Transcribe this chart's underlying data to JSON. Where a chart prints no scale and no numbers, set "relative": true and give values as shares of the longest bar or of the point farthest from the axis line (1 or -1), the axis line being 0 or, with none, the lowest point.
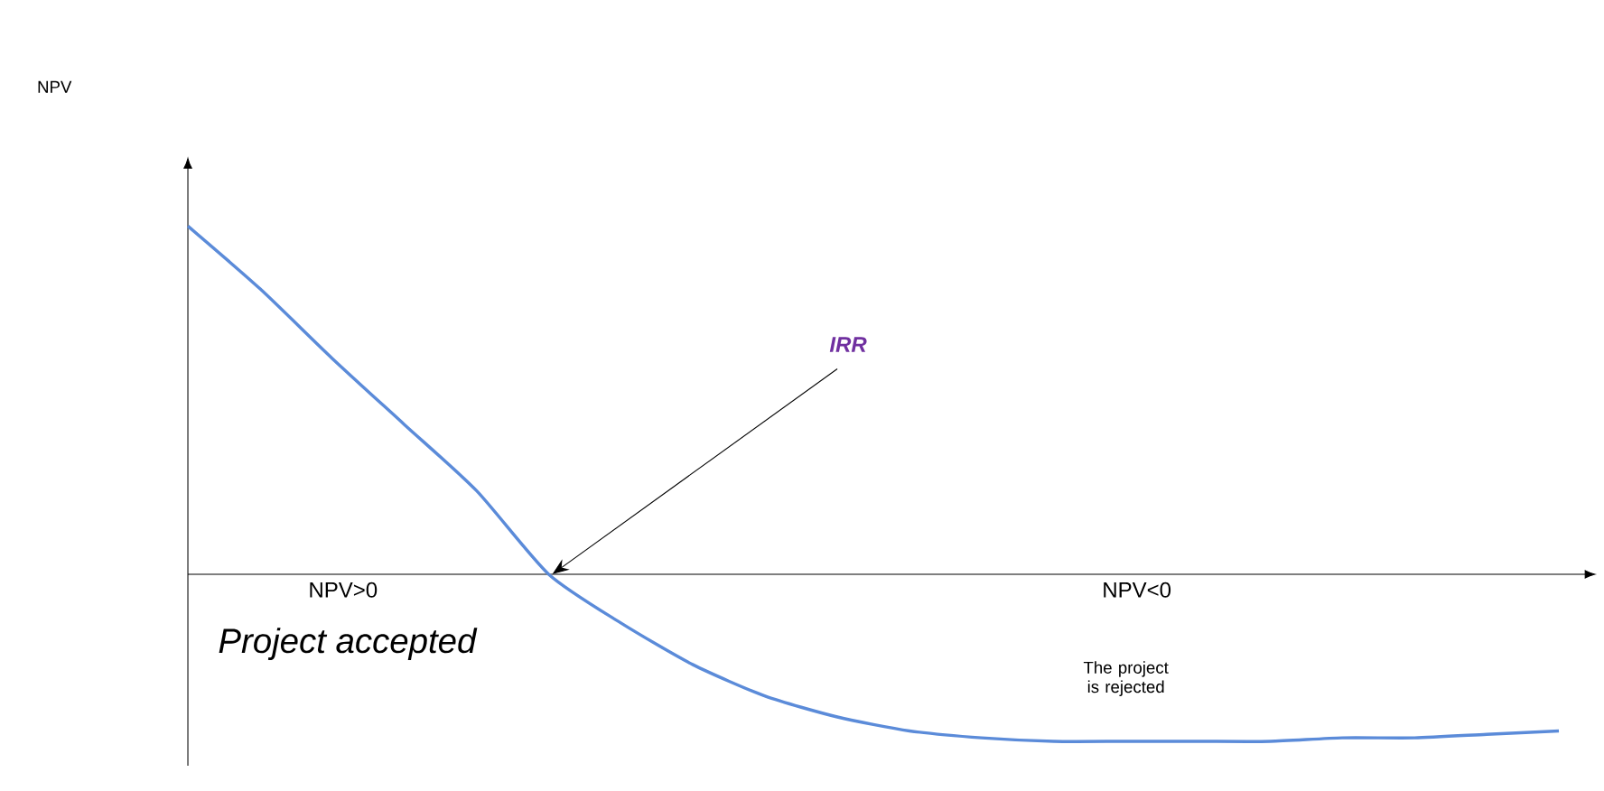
{
  "chart_data": {
    "type": "line",
    "relative": true,
    "color": "#5b8bd9",
    "marker": "none",
    "line_style": "solid",
    "categories": [
      null,
      null,
      null,
      null,
      null,
      null,
      null,
      null,
      null,
      null,
      null,
      null,
      null,
      null,
      null,
      null,
      null,
      null,
      null,
      null
    ],
    "values": [
      1.0,
      0.82,
      0.62,
      0.43,
      0.24,
      0.0,
      -0.14,
      -0.26,
      -0.35,
      -0.41,
      -0.45,
      -0.47,
      -0.48,
      -0.48,
      -0.48,
      -0.48,
      -0.47,
      -0.47,
      -0.46,
      -0.45
    ],
    "annotations": [
      "IRR",
      "NPV>0",
      "Project accepted",
      "NPV<0",
      "The project is rejected",
      "NPV"
    ]
  }
}
